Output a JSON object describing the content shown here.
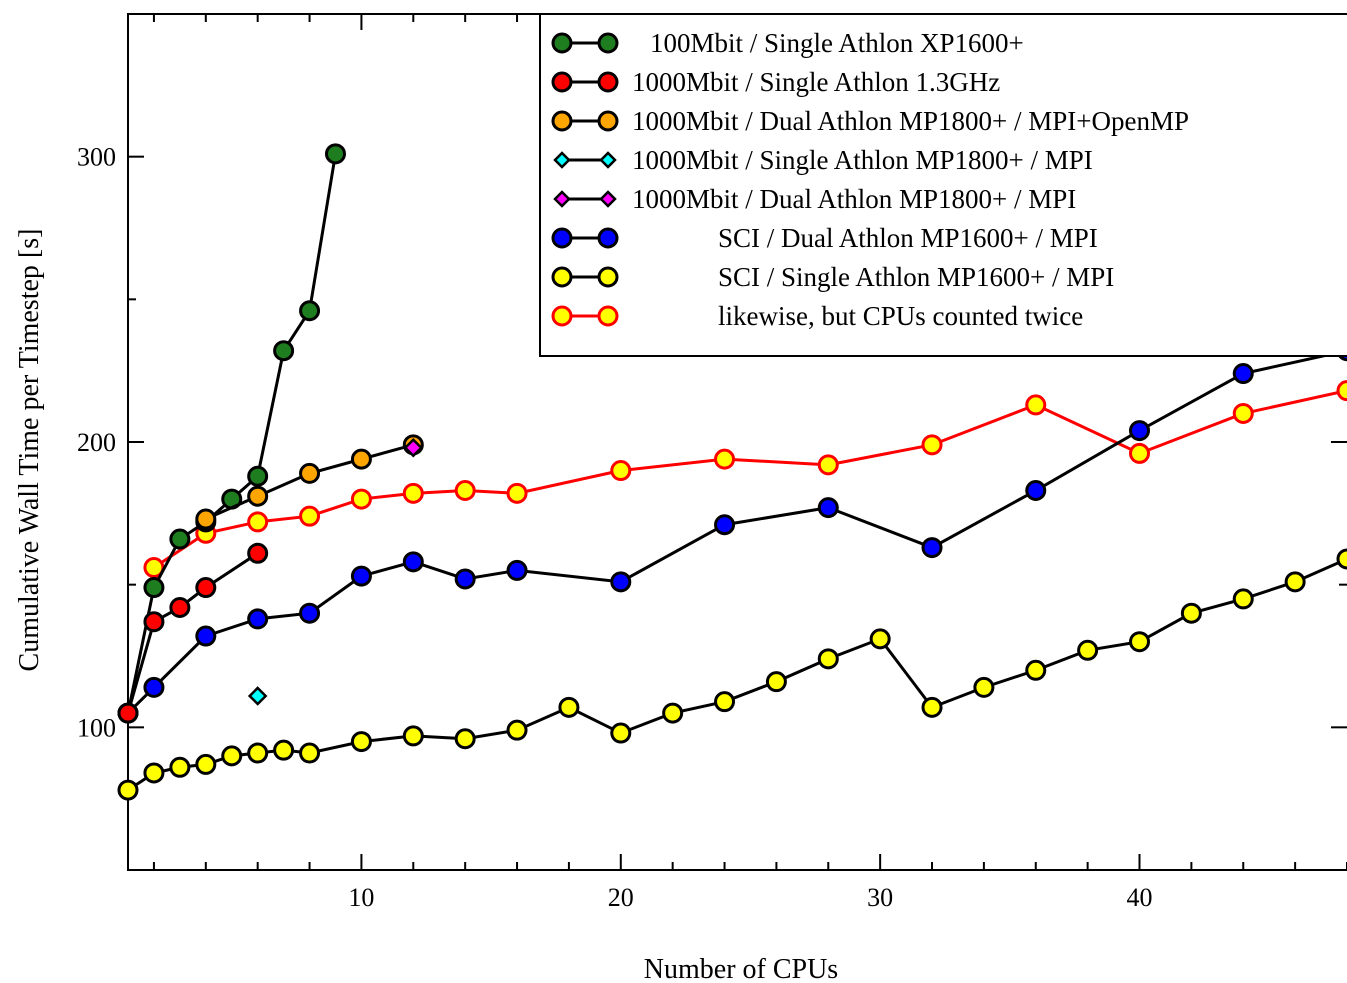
{
  "chart_data": {
    "type": "line",
    "title": "",
    "xlabel": "Number of CPUs",
    "ylabel": "Cumulative Wall Time per Timestep [s]",
    "xlim": [
      1,
      48
    ],
    "ylim": [
      50,
      350
    ],
    "x_ticks": [
      10,
      20,
      30,
      40
    ],
    "y_ticks": [
      100,
      200,
      300
    ],
    "grid": false,
    "legend_position": "top-right",
    "series": [
      {
        "name": "100Mbit / Single Athlon XP1600+",
        "color": "#1e7d1e",
        "marker": "circle",
        "x": [
          1,
          2,
          3,
          4,
          5,
          6,
          7,
          8,
          9
        ],
        "y": [
          105,
          149,
          166,
          172,
          180,
          188,
          232,
          246,
          301
        ]
      },
      {
        "name": "1000Mbit / Single Athlon 1.3GHz",
        "color": "#ff0000",
        "marker": "circle",
        "x": [
          1,
          2,
          3,
          4,
          6
        ],
        "y": [
          105,
          137,
          142,
          149,
          161
        ]
      },
      {
        "name": "1000Mbit / Dual Athlon MP1800+ / MPI+OpenMP",
        "color": "#ffa500",
        "marker": "circle",
        "x": [
          4,
          6,
          8,
          10,
          12
        ],
        "y": [
          173,
          181,
          189,
          194,
          199
        ]
      },
      {
        "name": "1000Mbit / Single Athlon MP1800+ / MPI",
        "color": "#00ffff",
        "marker": "diamond",
        "x": [
          6
        ],
        "y": [
          111
        ]
      },
      {
        "name": "1000Mbit / Dual Athlon MP1800+ / MPI",
        "color": "#ff00ff",
        "marker": "diamond",
        "x": [
          12
        ],
        "y": [
          198
        ]
      },
      {
        "name": "SCI / Dual Athlon MP1600+ / MPI",
        "color": "#0000ff",
        "marker": "circle",
        "x": [
          1,
          2,
          4,
          6,
          8,
          10,
          12,
          14,
          16,
          20,
          24,
          28,
          32,
          36,
          40,
          44,
          48
        ],
        "y": [
          105,
          114,
          132,
          138,
          140,
          153,
          158,
          152,
          155,
          151,
          171,
          177,
          163,
          183,
          204,
          224,
          232
        ]
      },
      {
        "name": "SCI / Single Athlon MP1600+ / MPI",
        "color": "#ffff00",
        "marker": "circle",
        "x": [
          1,
          2,
          3,
          4,
          5,
          6,
          7,
          8,
          10,
          12,
          14,
          16,
          18,
          20,
          22,
          24,
          26,
          28,
          30,
          32,
          34,
          36,
          38,
          40,
          42,
          44,
          46,
          48
        ],
        "y": [
          78,
          84,
          86,
          87,
          90,
          91,
          92,
          91,
          95,
          97,
          96,
          99,
          107,
          98,
          105,
          109,
          116,
          124,
          131,
          107,
          114,
          120,
          127,
          130,
          140,
          145,
          151,
          159
        ]
      },
      {
        "name": "likewise, but CPUs counted twice",
        "color": "#ffff00",
        "edge_color": "#ff0000",
        "line_color": "#ff0000",
        "marker": "circle",
        "x": [
          2,
          4,
          6,
          8,
          10,
          12,
          14,
          16,
          20,
          24,
          28,
          32,
          36,
          40,
          44,
          48
        ],
        "y": [
          156,
          168,
          172,
          174,
          180,
          182,
          183,
          182,
          190,
          194,
          192,
          199,
          213,
          196,
          210,
          218
        ]
      }
    ]
  }
}
